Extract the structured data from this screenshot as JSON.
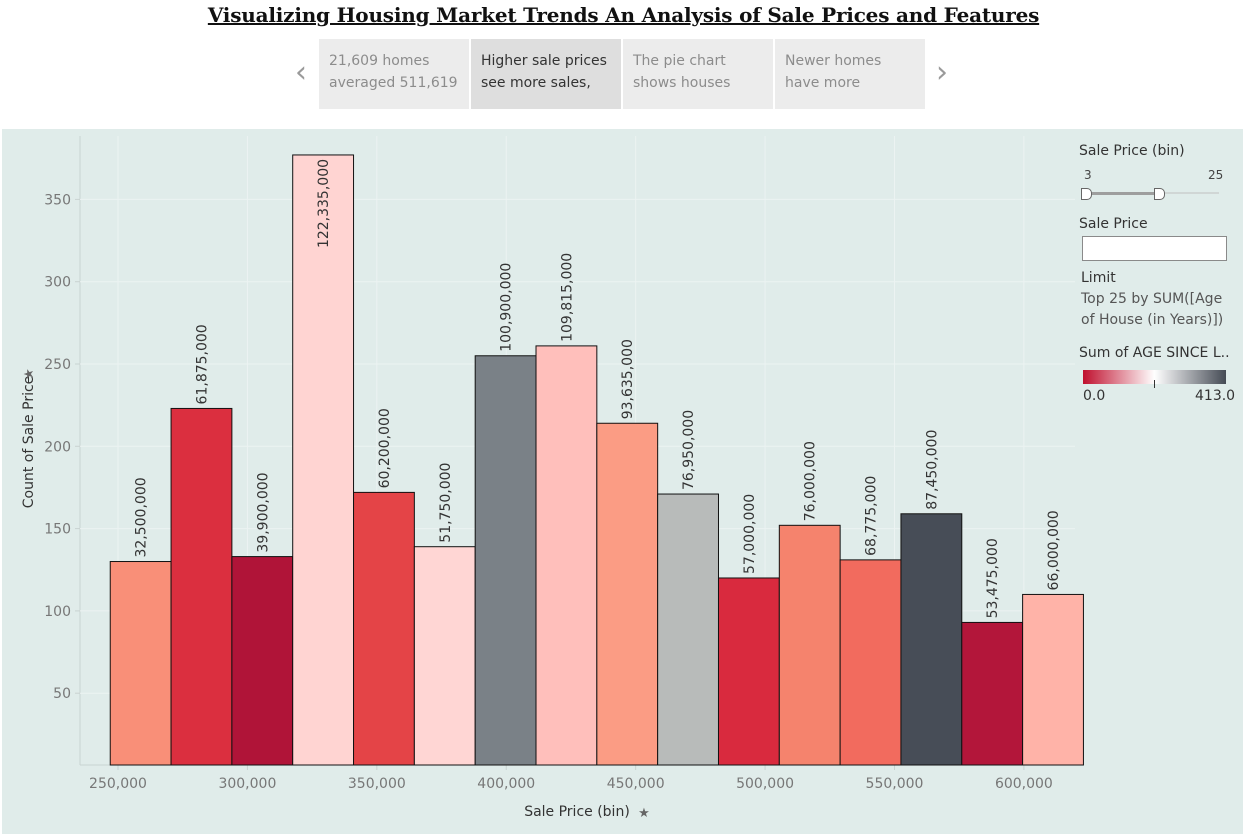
{
  "title": "Visualizing Housing Market Trends An Analysis of Sale Prices and Features",
  "story": {
    "points": [
      {
        "line1": "21,609 homes",
        "line2": "averaged 511,619"
      },
      {
        "line1": "Higher sale prices",
        "line2": "see more sales,"
      },
      {
        "line1": "The pie chart",
        "line2": "shows houses"
      },
      {
        "line1": "Newer homes",
        "line2": "have more"
      }
    ],
    "active_index": 1,
    "prev_icon": "chevron-left-icon",
    "next_icon": "chevron-right-icon"
  },
  "filters": {
    "bin_slider": {
      "label": "Sale Price (bin)",
      "min": "3",
      "max": "25"
    },
    "sale_price_input": {
      "label": "Sale Price",
      "value": ""
    },
    "limit": {
      "label": "Limit",
      "line1": "Top 25 by SUM([Age",
      "line2": "of House (in Years)])"
    },
    "color_legend": {
      "label": "Sum of AGE SINCE L..",
      "min": "0.0",
      "max": "413.0",
      "colors": [
        "#c0102e",
        "#ffffff",
        "#454b55"
      ]
    }
  },
  "chart_data": {
    "type": "bar",
    "xlabel": "Sale Price (bin)",
    "ylabel": "Count of Sale Price",
    "x_ticks": [
      "250,000",
      "300,000",
      "350,000",
      "400,000",
      "450,000",
      "500,000",
      "550,000",
      "600,000"
    ],
    "y_ticks": [
      "50",
      "100",
      "150",
      "200",
      "250",
      "300",
      "350"
    ],
    "ylim": [
      0,
      380
    ],
    "bin_width": 23500,
    "grid": true,
    "bars": [
      {
        "x": 247000,
        "count": 130,
        "label": "32,500,000",
        "color": "#f98f78"
      },
      {
        "x": 270500,
        "count": 223,
        "label": "61,875,000",
        "color": "#db2f3f"
      },
      {
        "x": 294000,
        "count": 133,
        "label": "39,900,000",
        "color": "#b01438"
      },
      {
        "x": 317500,
        "count": 377,
        "label": "122,335,000",
        "color": "#ffd4d2"
      },
      {
        "x": 341000,
        "count": 172,
        "label": "60,200,000",
        "color": "#e44447"
      },
      {
        "x": 364500,
        "count": 139,
        "label": "51,750,000",
        "color": "#ffd6d4"
      },
      {
        "x": 388000,
        "count": 255,
        "label": "100,900,000",
        "color": "#7a8187"
      },
      {
        "x": 411500,
        "count": 261,
        "label": "109,815,000",
        "color": "#ffbfbb"
      },
      {
        "x": 435000,
        "count": 214,
        "label": "93,635,000",
        "color": "#fb9c84"
      },
      {
        "x": 458500,
        "count": 171,
        "label": "76,950,000",
        "color": "#b8bbba"
      },
      {
        "x": 482000,
        "count": 120,
        "label": "57,000,000",
        "color": "#d92a3e"
      },
      {
        "x": 505500,
        "count": 152,
        "label": "76,000,000",
        "color": "#f5836d"
      },
      {
        "x": 529000,
        "count": 131,
        "label": "68,775,000",
        "color": "#f26b5e"
      },
      {
        "x": 552500,
        "count": 159,
        "label": "87,450,000",
        "color": "#474d57"
      },
      {
        "x": 576000,
        "count": 93,
        "label": "53,475,000",
        "color": "#b3163a"
      },
      {
        "x": 599500,
        "count": 110,
        "label": "66,000,000",
        "color": "#ffb3a8"
      }
    ]
  }
}
